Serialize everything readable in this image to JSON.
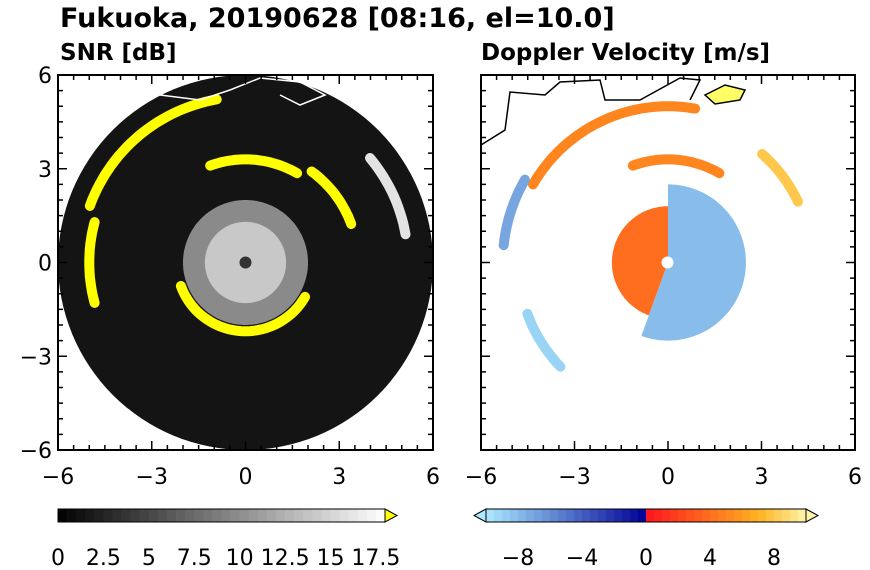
{
  "figure": {
    "title": "Fukuoka, 20190628 [08:16, el=10.0]"
  },
  "chart_data": [
    {
      "type": "heatmap",
      "title": "SNR [dB]",
      "projection": "polar-ppi",
      "xlim": [
        -6,
        6
      ],
      "ylim": [
        -6,
        6
      ],
      "xticks": [
        "−6",
        "−3",
        "0",
        "3",
        "6"
      ],
      "yticks": [
        "6",
        "3",
        "0",
        "−3",
        "−6"
      ],
      "radar_range": 6,
      "colorbar": {
        "min": 0,
        "max": 18,
        "step": 0.5,
        "extend": "max",
        "colormap": "black-to-white, yellow overflow",
        "over_color": "#ffff00",
        "tick_labels": [
          "0",
          "2.5",
          "5",
          "7.5",
          "10",
          "12.5",
          "15",
          "17.5"
        ],
        "tick_values": [
          0,
          2.5,
          5,
          7.5,
          10,
          12.5,
          15,
          17.5
        ]
      },
      "echo_arcs": [
        {
          "r": 5.3,
          "from_deg": 100,
          "to_deg": 160,
          "snr": 20
        },
        {
          "r": 5.0,
          "from_deg": 165,
          "to_deg": 195,
          "snr": 20
        },
        {
          "r": 3.3,
          "from_deg": 60,
          "to_deg": 110,
          "snr": 20
        },
        {
          "r": 3.6,
          "from_deg": 20,
          "to_deg": 55,
          "snr": 20
        },
        {
          "r": 2.2,
          "from_deg": 200,
          "to_deg": 330,
          "snr": 20
        },
        {
          "r": 5.2,
          "from_deg": 10,
          "to_deg": 40,
          "snr": 16
        }
      ]
    },
    {
      "type": "heatmap",
      "title": "Doppler Velocity [m/s]",
      "projection": "polar-ppi",
      "xlim": [
        -6,
        6
      ],
      "ylim": [
        -6,
        6
      ],
      "xticks": [
        "−6",
        "−3",
        "0",
        "3",
        "6"
      ],
      "yticks": [
        "6",
        "3",
        "0",
        "−3",
        "−6"
      ],
      "radar_range": 6,
      "colorbar": {
        "min": -10,
        "max": 10,
        "step": 0.5,
        "extend": "both",
        "colormap": "light blue - dark blue | red - orange - yellow",
        "tick_labels": [
          "−8",
          "−4",
          "0",
          "4",
          "8"
        ],
        "tick_values": [
          -8,
          -4,
          0,
          4,
          8
        ]
      },
      "echo_arcs": [
        {
          "r": 5.0,
          "from_deg": 80,
          "to_deg": 150,
          "v": 5
        },
        {
          "r": 5.3,
          "from_deg": 150,
          "to_deg": 175,
          "v": -7
        },
        {
          "r": 3.3,
          "from_deg": 60,
          "to_deg": 110,
          "v": 5
        },
        {
          "r": 4.6,
          "from_deg": 25,
          "to_deg": 50,
          "v": 8
        },
        {
          "r": 4.8,
          "from_deg": 200,
          "to_deg": 225,
          "v": -9
        }
      ],
      "core": [
        {
          "from_deg": 90,
          "to_deg": 250,
          "r": 1.8,
          "v": 4
        },
        {
          "from_deg": 250,
          "to_deg": 450,
          "r": 2.5,
          "v": -8
        }
      ]
    }
  ]
}
